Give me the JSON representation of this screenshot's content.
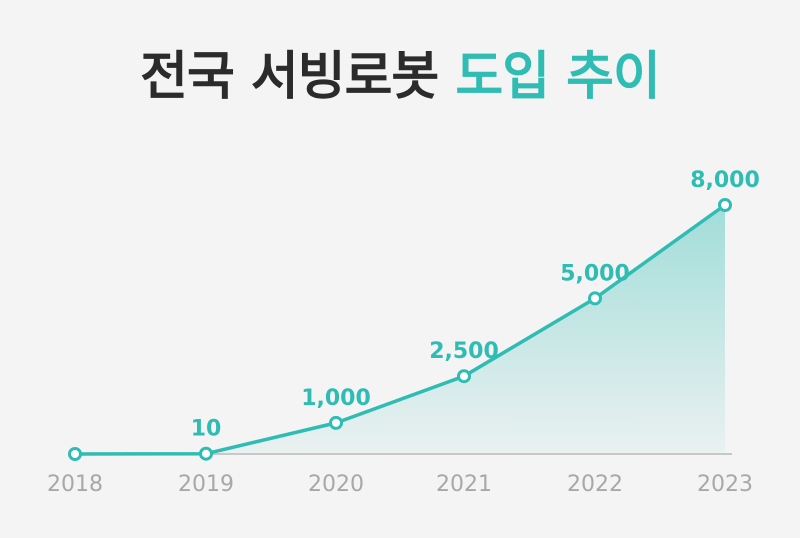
{
  "title": {
    "dark_part": "전국 서빙로봇",
    "accent_part": "도입 추이"
  },
  "colors": {
    "accent": "#2fbcb3",
    "title_dark": "#2b2b2b",
    "axis": "#c8c8c8",
    "tick_text": "#a8a8a8",
    "background": "#f4f4f4"
  },
  "chart_data": {
    "type": "area",
    "categories": [
      "2018",
      "2019",
      "2020",
      "2021",
      "2022",
      "2023"
    ],
    "values": [
      0,
      10,
      1000,
      2500,
      5000,
      8000
    ],
    "data_labels": [
      "",
      "10",
      "1,000",
      "2,500",
      "5,000",
      "8,000"
    ],
    "title": "전국 서빙로봇 도입 추이",
    "xlabel": "",
    "ylabel": "",
    "ylim": [
      0,
      8000
    ],
    "grid": false,
    "legend": "none"
  }
}
